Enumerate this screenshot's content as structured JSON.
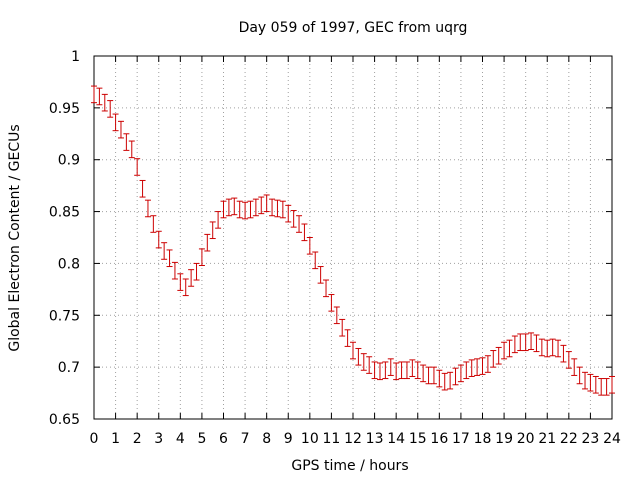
{
  "chart_data": {
    "type": "line",
    "title": "Day 059 of 1997, GEC from uqrg",
    "xlabel": "GPS time / hours",
    "ylabel": "Global Electron Content / GECUs",
    "xlim": [
      0,
      24
    ],
    "ylim": [
      0.65,
      1.0
    ],
    "xticks": [
      0,
      1,
      2,
      3,
      4,
      5,
      6,
      7,
      8,
      9,
      10,
      11,
      12,
      13,
      14,
      15,
      16,
      17,
      18,
      19,
      20,
      21,
      22,
      23,
      24
    ],
    "yticks": [
      0.65,
      0.7,
      0.75,
      0.8,
      0.85,
      0.9,
      0.95,
      1.0
    ],
    "ytick_labels": [
      "0.65",
      "0.7",
      "0.75",
      "0.8",
      "0.85",
      "0.9",
      "0.95",
      "1"
    ],
    "grid": true,
    "legend": "none",
    "series_color": "#cc0000",
    "series": [
      {
        "x": [
          0,
          0.25,
          0.5,
          0.75,
          1,
          1.25,
          1.5,
          1.75,
          2,
          2.25,
          2.5,
          2.75,
          3,
          3.25,
          3.5,
          3.75,
          4,
          4.25,
          4.5,
          4.75,
          5,
          5.25,
          5.5,
          5.75,
          6,
          6.25,
          6.5,
          6.75,
          7,
          7.25,
          7.5,
          7.75,
          8,
          8.25,
          8.5,
          8.75,
          9,
          9.25,
          9.5,
          9.75,
          10,
          10.25,
          10.5,
          10.75,
          11,
          11.25,
          11.5,
          11.75,
          12,
          12.25,
          12.5,
          12.75,
          13,
          13.25,
          13.5,
          13.75,
          14,
          14.25,
          14.5,
          14.75,
          15,
          15.25,
          15.5,
          15.75,
          16,
          16.25,
          16.5,
          16.75,
          17,
          17.25,
          17.5,
          17.75,
          18,
          18.25,
          18.5,
          18.75,
          19,
          19.25,
          19.5,
          19.75,
          20,
          20.25,
          20.5,
          20.75,
          21,
          21.25,
          21.5,
          21.75,
          22,
          22.25,
          22.5,
          22.75,
          23,
          23.25,
          23.5,
          23.75,
          24
        ],
        "y": [
          0.963,
          0.961,
          0.955,
          0.949,
          0.936,
          0.929,
          0.917,
          0.91,
          0.893,
          0.872,
          0.853,
          0.838,
          0.823,
          0.812,
          0.805,
          0.793,
          0.782,
          0.777,
          0.786,
          0.792,
          0.806,
          0.82,
          0.832,
          0.842,
          0.852,
          0.854,
          0.855,
          0.852,
          0.851,
          0.852,
          0.854,
          0.856,
          0.858,
          0.854,
          0.853,
          0.852,
          0.848,
          0.843,
          0.838,
          0.83,
          0.817,
          0.803,
          0.789,
          0.776,
          0.762,
          0.75,
          0.738,
          0.728,
          0.716,
          0.71,
          0.705,
          0.702,
          0.697,
          0.696,
          0.697,
          0.7,
          0.696,
          0.697,
          0.697,
          0.699,
          0.697,
          0.694,
          0.692,
          0.692,
          0.689,
          0.686,
          0.687,
          0.691,
          0.694,
          0.697,
          0.699,
          0.7,
          0.701,
          0.703,
          0.708,
          0.711,
          0.716,
          0.718,
          0.722,
          0.724,
          0.724,
          0.725,
          0.723,
          0.719,
          0.718,
          0.719,
          0.718,
          0.713,
          0.707,
          0.7,
          0.692,
          0.687,
          0.685,
          0.683,
          0.681,
          0.681,
          0.683
        ],
        "err": 0.008
      }
    ]
  }
}
